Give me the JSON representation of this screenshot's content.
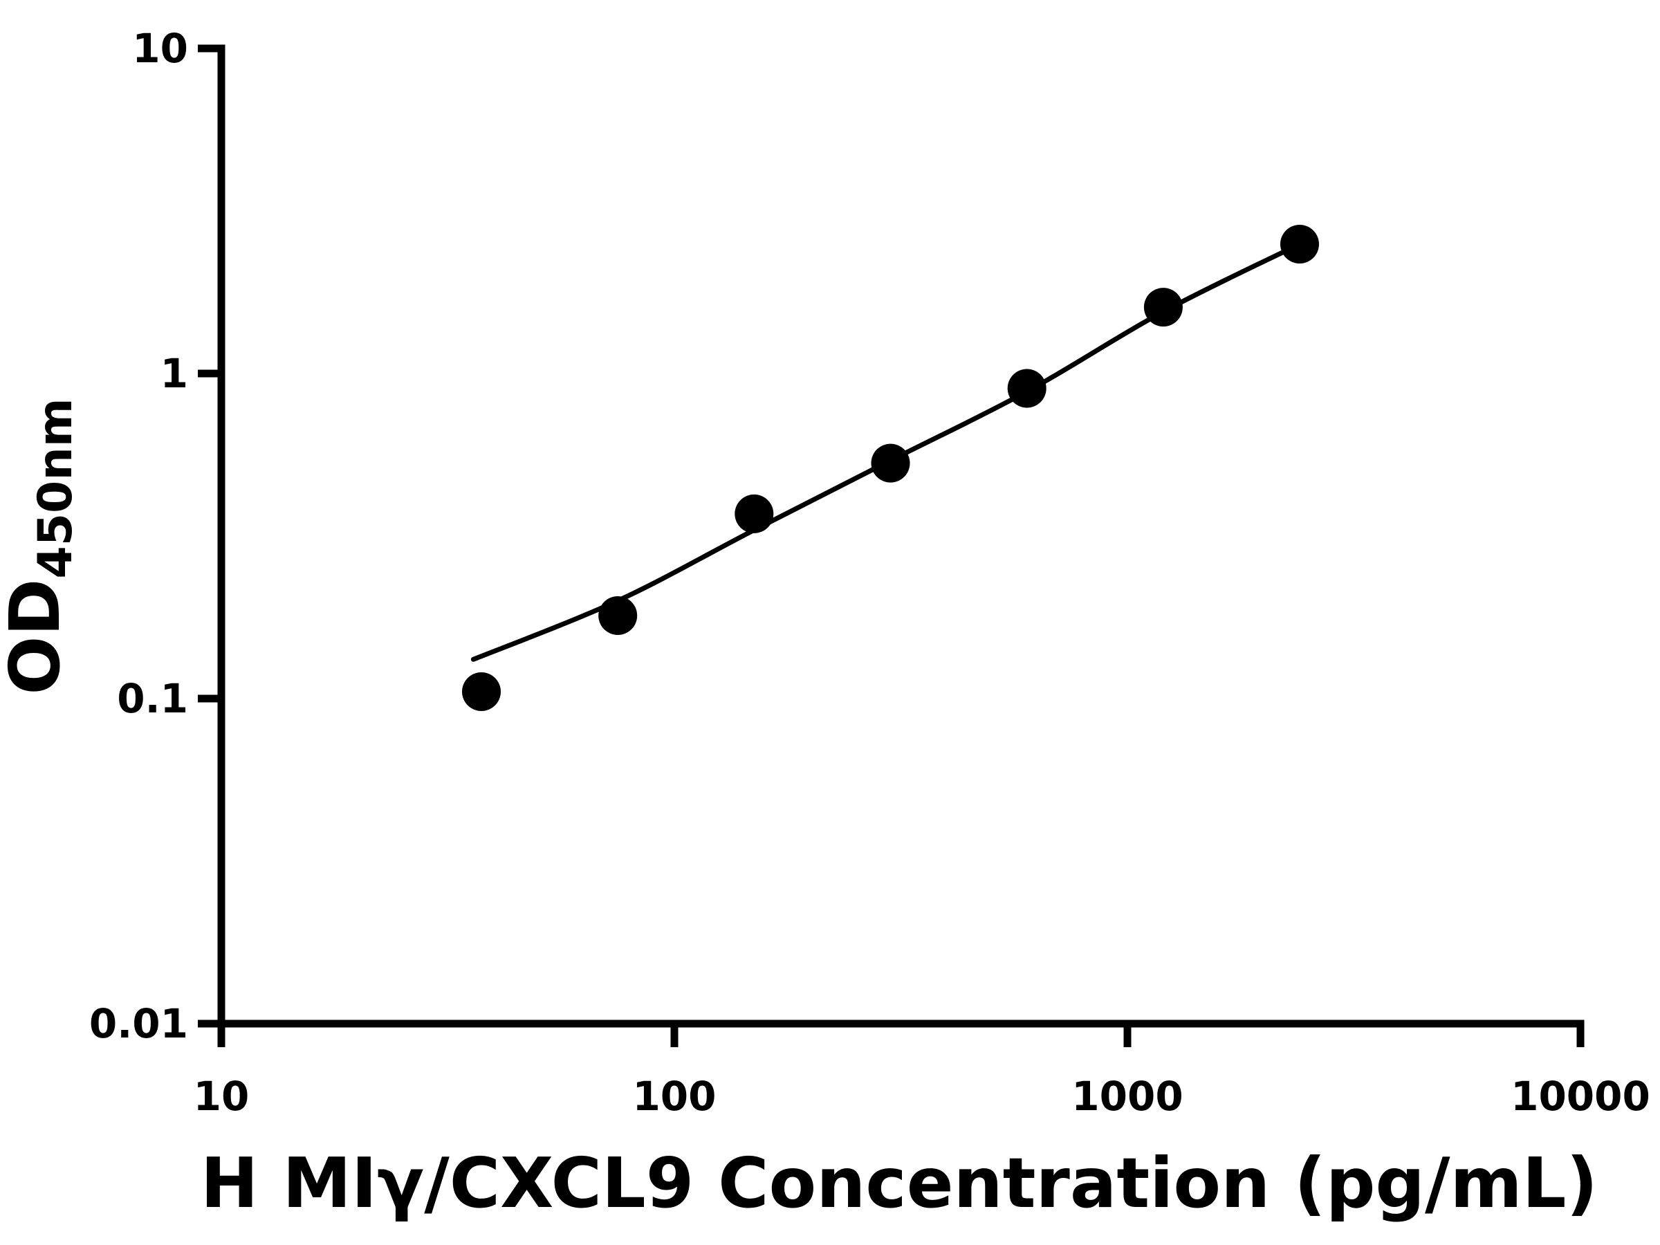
{
  "figure": {
    "background": "#ffffff",
    "ink_color": "#000000"
  },
  "chart_data": {
    "type": "scatter",
    "title": "",
    "xlabel": "H MIγ/CXCL9 Concentration (pg/mL)",
    "ylabel_main": "OD",
    "ylabel_sub": "450nm",
    "x_scale": "log10",
    "y_scale": "log10",
    "xlim": [
      10,
      10000
    ],
    "ylim": [
      0.01,
      10
    ],
    "grid": false,
    "legend": false,
    "x_ticks": [
      {
        "value": 10,
        "label": "10"
      },
      {
        "value": 100,
        "label": "100"
      },
      {
        "value": 1000,
        "label": "1000"
      },
      {
        "value": 10000,
        "label": "10000"
      }
    ],
    "y_ticks": [
      {
        "value": 0.01,
        "label": "0.01"
      },
      {
        "value": 0.1,
        "label": "0.1"
      },
      {
        "value": 1,
        "label": "1"
      },
      {
        "value": 10,
        "label": "10"
      }
    ],
    "points": [
      {
        "x": 37.5,
        "y": 0.105
      },
      {
        "x": 75,
        "y": 0.18
      },
      {
        "x": 150,
        "y": 0.37
      },
      {
        "x": 300,
        "y": 0.53
      },
      {
        "x": 600,
        "y": 0.9
      },
      {
        "x": 1200,
        "y": 1.6
      },
      {
        "x": 2400,
        "y": 2.5
      }
    ],
    "fit_curve": [
      [
        36,
        0.132
      ],
      [
        75,
        0.2
      ],
      [
        150,
        0.33
      ],
      [
        300,
        0.54
      ],
      [
        600,
        0.88
      ],
      [
        1200,
        1.55
      ],
      [
        2400,
        2.5
      ]
    ],
    "marker": {
      "shape": "circle",
      "color": "#000000"
    }
  }
}
